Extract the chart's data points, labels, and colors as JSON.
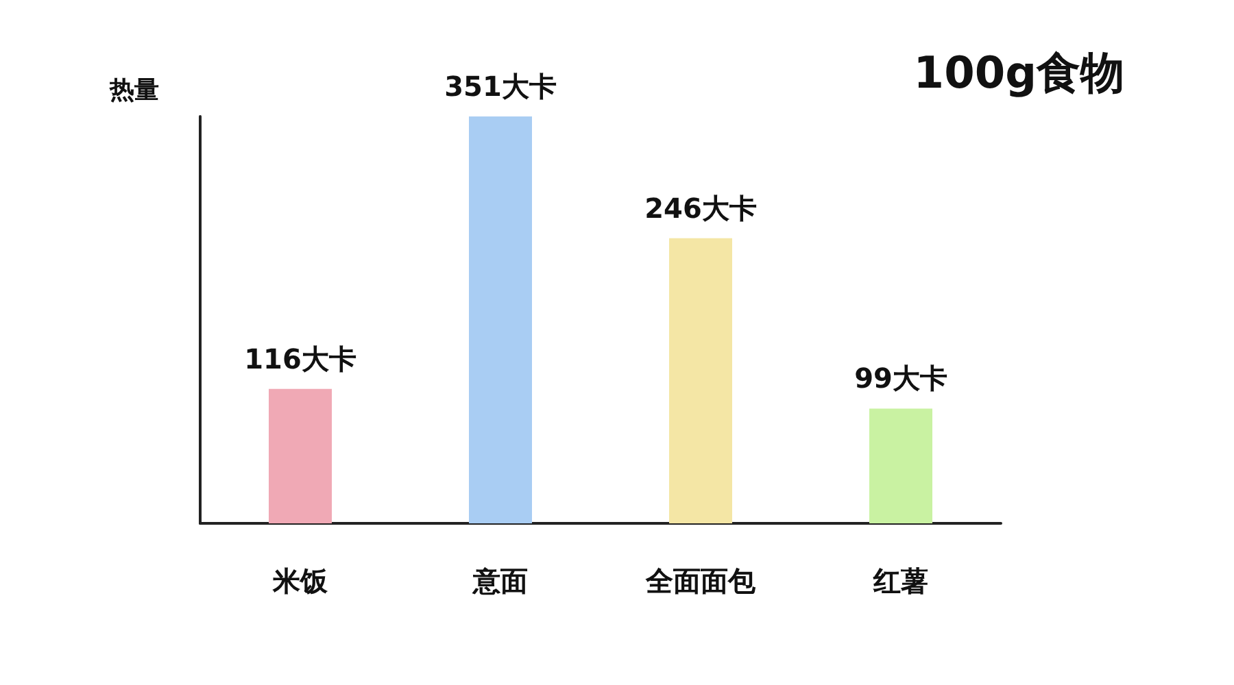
{
  "chart_data": {
    "type": "bar",
    "title": "100g食物",
    "ylabel": "热量",
    "categories": [
      "米饭",
      "意面",
      "全面面包",
      "红薯"
    ],
    "values": [
      116,
      351,
      246,
      99
    ],
    "colors": [
      "#f0a9b5",
      "#a9cdf3",
      "#f4e6a5",
      "#c9f2a2"
    ],
    "value_labels": [
      "116大卡",
      "351大卡",
      "246大卡",
      "99大卡"
    ],
    "grid": false
  }
}
